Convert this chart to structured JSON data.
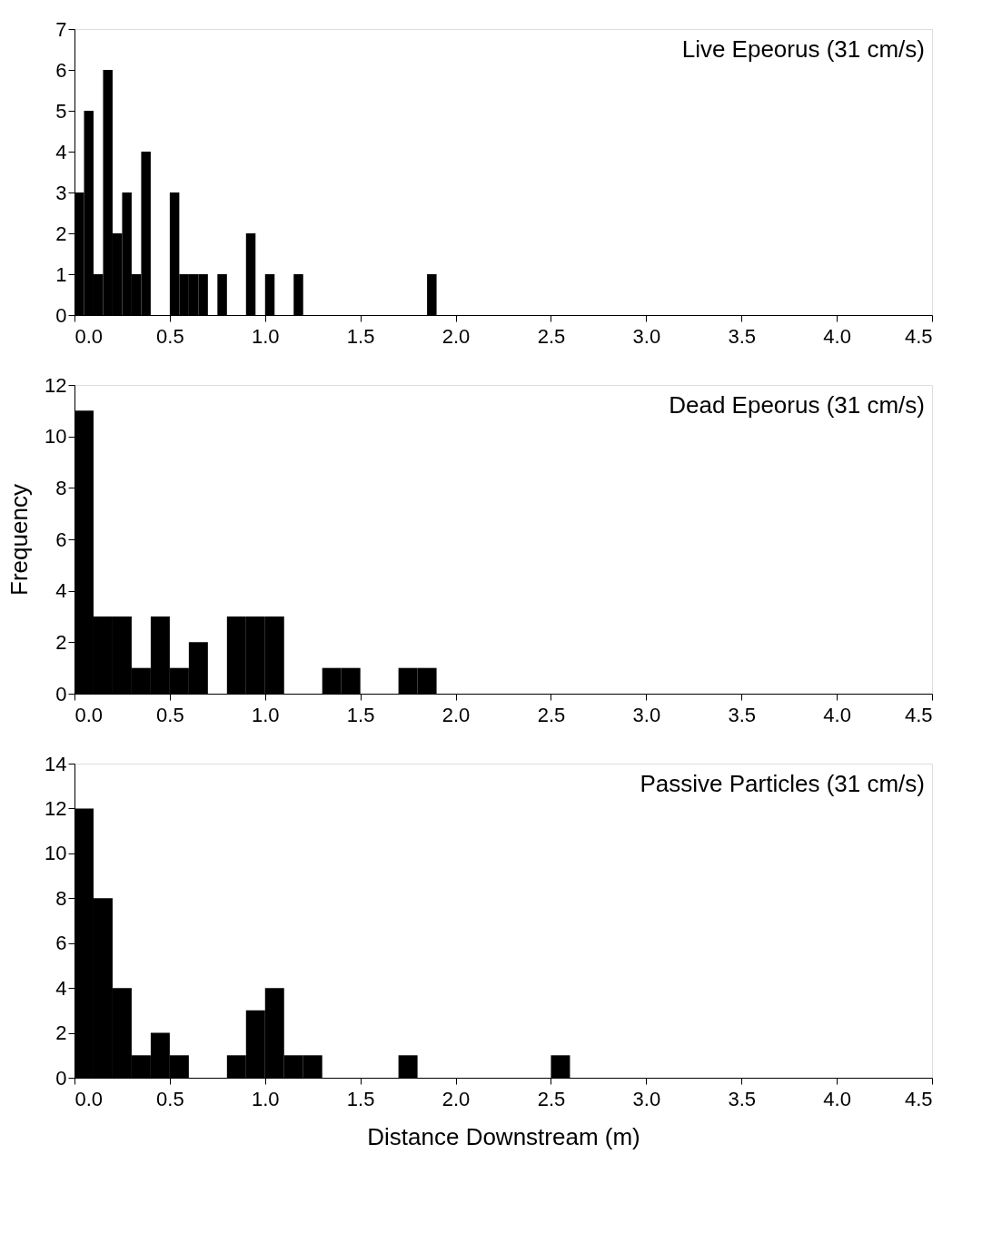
{
  "chart_data": [
    {
      "type": "histogram",
      "annotations": [
        "Live Epeorus (31 cm/s)"
      ],
      "bins": [
        0,
        0.05,
        0.1,
        0.15,
        0.2,
        0.25,
        0.3,
        0.35,
        0.4,
        0.45,
        0.5,
        0.55,
        0.6,
        0.65,
        0.7,
        0.75,
        0.8,
        0.85,
        0.9,
        0.95,
        1.0,
        1.05,
        1.1,
        1.15,
        1.2,
        1.25,
        1.3,
        1.35,
        1.4,
        1.45,
        1.5,
        1.55,
        1.6,
        1.65,
        1.7,
        1.75,
        1.8,
        1.85,
        1.9
      ],
      "values": [
        3,
        5,
        1,
        6,
        2,
        3,
        1,
        4,
        0,
        0,
        3,
        1,
        1,
        1,
        0,
        1,
        0,
        0,
        2,
        0,
        1,
        0,
        0,
        1,
        0,
        0,
        0,
        0,
        0,
        0,
        0,
        0,
        0,
        0,
        0,
        0,
        0,
        1
      ],
      "color": "#000000",
      "xlim": [
        0,
        4.5
      ],
      "xticks": [
        {
          "value": 0,
          "label": "0.0"
        },
        0.5,
        {
          "value": 1,
          "label": "1.0"
        },
        1.5,
        {
          "value": 2,
          "label": "2.0"
        },
        2.5,
        {
          "value": 3,
          "label": "3.0"
        },
        3.5,
        {
          "value": 4,
          "label": "4.0"
        },
        4.5
      ],
      "ylim": [
        0,
        7
      ],
      "yticks": [
        0,
        1,
        2,
        3,
        4,
        5,
        6,
        7
      ],
      "grid": false
    },
    {
      "type": "histogram",
      "annotations": [
        "Dead Epeorus (31 cm/s)"
      ],
      "ylabel": "Frequency",
      "bins": [
        0,
        0.1,
        0.2,
        0.3,
        0.4,
        0.5,
        0.6,
        0.7,
        0.8,
        0.9,
        1.0,
        1.1,
        1.2,
        1.3,
        1.4,
        1.5,
        1.6,
        1.7,
        1.8,
        1.9
      ],
      "values": [
        11,
        3,
        3,
        1,
        3,
        1,
        2,
        0,
        3,
        3,
        3,
        0,
        0,
        1,
        1,
        0,
        0,
        1,
        1
      ],
      "color": "#000000",
      "xlim": [
        0,
        4.5
      ],
      "xticks": [
        {
          "value": 0,
          "label": "0.0"
        },
        0.5,
        {
          "value": 1,
          "label": "1.0"
        },
        1.5,
        {
          "value": 2,
          "label": "2.0"
        },
        2.5,
        {
          "value": 3,
          "label": "3.0"
        },
        3.5,
        {
          "value": 4,
          "label": "4.0"
        },
        4.5
      ],
      "ylim": [
        0,
        12
      ],
      "yticks": [
        0,
        2,
        4,
        6,
        8,
        10,
        12
      ],
      "grid": false
    },
    {
      "type": "histogram",
      "annotations": [
        "Passive Particles (31 cm/s)"
      ],
      "xlabel": "Distance Downstream (m)",
      "bins": [
        0,
        0.1,
        0.2,
        0.3,
        0.4,
        0.5,
        0.6,
        0.7,
        0.8,
        0.9,
        1.0,
        1.1,
        1.2,
        1.3,
        1.4,
        1.5,
        1.6,
        1.7,
        1.8,
        1.9,
        2.0,
        2.1,
        2.2,
        2.3,
        2.4,
        2.5,
        2.6
      ],
      "values": [
        12,
        8,
        4,
        1,
        2,
        1,
        0,
        0,
        1,
        3,
        4,
        1,
        1,
        0,
        0,
        0,
        0,
        1,
        0,
        0,
        0,
        0,
        0,
        0,
        0,
        1
      ],
      "color": "#000000",
      "xlim": [
        0,
        4.5
      ],
      "xticks": [
        {
          "value": 0,
          "label": "0.0"
        },
        0.5,
        {
          "value": 1,
          "label": "1.0"
        },
        1.5,
        {
          "value": 2,
          "label": "2.0"
        },
        2.5,
        {
          "value": 3,
          "label": "3.0"
        },
        3.5,
        {
          "value": 4,
          "label": "4.0"
        },
        4.5
      ],
      "ylim": [
        0,
        14
      ],
      "yticks": [
        0,
        2,
        4,
        6,
        8,
        10,
        12,
        14
      ],
      "grid": false
    }
  ]
}
